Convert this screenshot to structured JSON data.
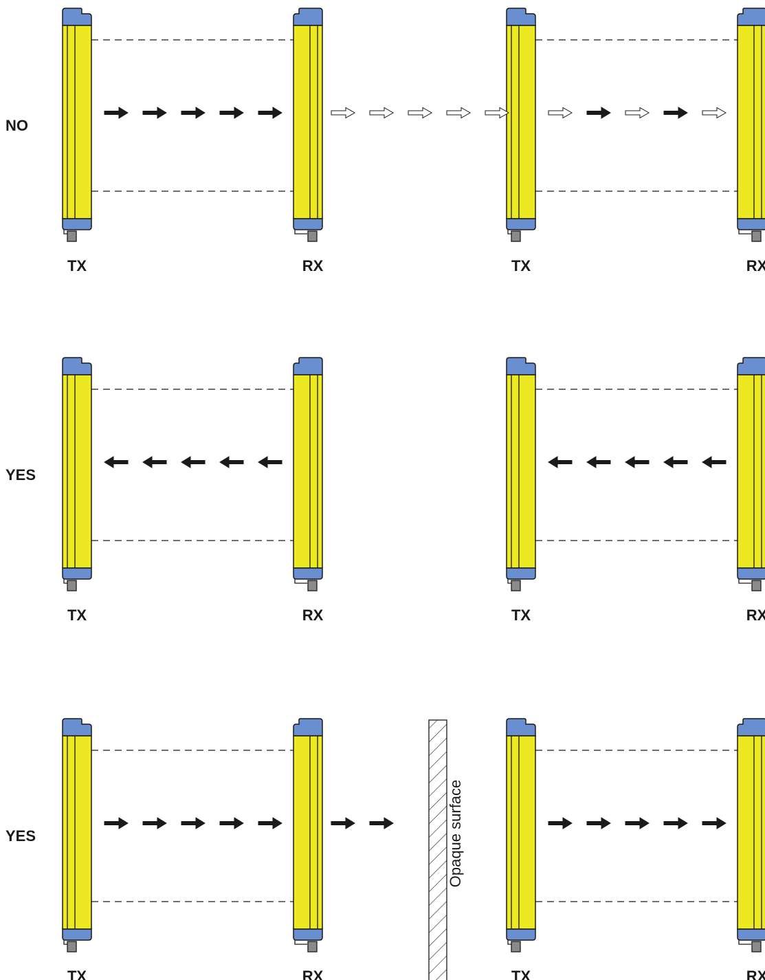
{
  "rows": [
    {
      "verdict": "NO",
      "pairs": [
        {
          "tx_label": "TX",
          "rx_label": "RX",
          "beams": [
            "solid",
            "solid",
            "solid",
            "solid",
            "solid"
          ],
          "direction": "right"
        },
        {
          "tx_label": "TX",
          "rx_label": "RX",
          "beams": [
            "hollow",
            "solid",
            "hollow",
            "solid",
            "hollow"
          ],
          "direction": "right"
        }
      ],
      "gap_beams": [
        "hollow",
        "hollow",
        "hollow",
        "hollow",
        "hollow"
      ],
      "gap_direction": "right",
      "surface_label": ""
    },
    {
      "verdict": "YES",
      "pairs": [
        {
          "tx_label": "TX",
          "rx_label": "RX",
          "beams": [
            "solid",
            "solid",
            "solid",
            "solid",
            "solid"
          ],
          "direction": "left"
        },
        {
          "tx_label": "TX",
          "rx_label": "RX",
          "beams": [
            "solid",
            "solid",
            "solid",
            "solid",
            "solid"
          ],
          "direction": "left"
        }
      ],
      "gap_beams": [],
      "gap_direction": "right",
      "surface_label": ""
    },
    {
      "verdict": "YES",
      "pairs": [
        {
          "tx_label": "TX",
          "rx_label": "RX",
          "beams": [
            "solid",
            "solid",
            "solid",
            "solid",
            "solid"
          ],
          "direction": "right"
        },
        {
          "tx_label": "TX",
          "rx_label": "RX",
          "beams": [
            "solid",
            "solid",
            "solid",
            "solid",
            "solid"
          ],
          "direction": "right"
        }
      ],
      "gap_beams": [
        "solid",
        "solid"
      ],
      "gap_direction": "right",
      "surface_label": "Opaque surface"
    }
  ],
  "colors": {
    "body": "#ece821",
    "cap": "#6a8fd0",
    "connector": "#8a8a8a",
    "outline": "#1a1a1a"
  }
}
